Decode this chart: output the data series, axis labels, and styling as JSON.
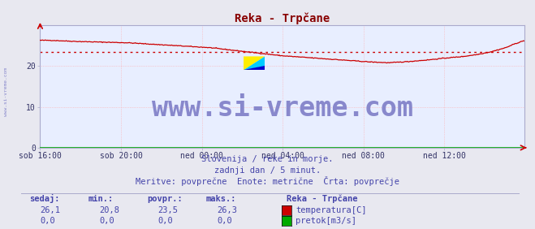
{
  "title": "Reka - Trpčane",
  "title_color": "#880000",
  "bg_color": "#e8e8f0",
  "plot_bg_color": "#e8eeff",
  "grid_color": "#ffaaaa",
  "grid_color_h": "#ffaaaa",
  "border_color": "#aaaacc",
  "xlabel_ticks": [
    "sob 16:00",
    "sob 20:00",
    "ned 00:00",
    "ned 04:00",
    "ned 08:00",
    "ned 12:00"
  ],
  "xlabel_tick_positions": [
    0,
    96,
    192,
    288,
    384,
    480
  ],
  "total_points": 576,
  "ylim": [
    0,
    30
  ],
  "yticks": [
    0,
    10,
    20
  ],
  "temp_avg": 23.5,
  "temp_min": 20.8,
  "temp_max": 26.3,
  "temp_current": 26.1,
  "flow_current": 0.0,
  "flow_min": 0.0,
  "flow_avg": 0.0,
  "flow_max": 0.0,
  "temp_color": "#cc0000",
  "flow_color": "#00aa00",
  "avg_line_color": "#cc0000",
  "watermark_text": "www.si-vreme.com",
  "watermark_color": "#8888cc",
  "watermark_fontsize": 24,
  "sidebar_text": "www.si-vreme.com",
  "sidebar_color": "#8888cc",
  "subtitle1": "Slovenija / reke in morje.",
  "subtitle2": "zadnji dan / 5 minut.",
  "subtitle3": "Meritve: povprečne  Enote: metrične  Črta: povprečje",
  "subtitle_color": "#4444aa",
  "legend_title": "Reka - Trpčane",
  "legend_label1": "temperatura[C]",
  "legend_label2": "pretok[m3/s]",
  "legend_color1": "#cc0000",
  "legend_color2": "#00aa00",
  "table_headers": [
    "sedaj:",
    "min.:",
    "povpr.:",
    "maks.:"
  ],
  "table_color": "#4444aa",
  "table_values_temp": [
    "26,1",
    "20,8",
    "23,5",
    "26,3"
  ],
  "table_values_flow": [
    "0,0",
    "0,0",
    "0,0",
    "0,0"
  ],
  "arrow_color": "#cc0000",
  "tick_color": "#333366"
}
